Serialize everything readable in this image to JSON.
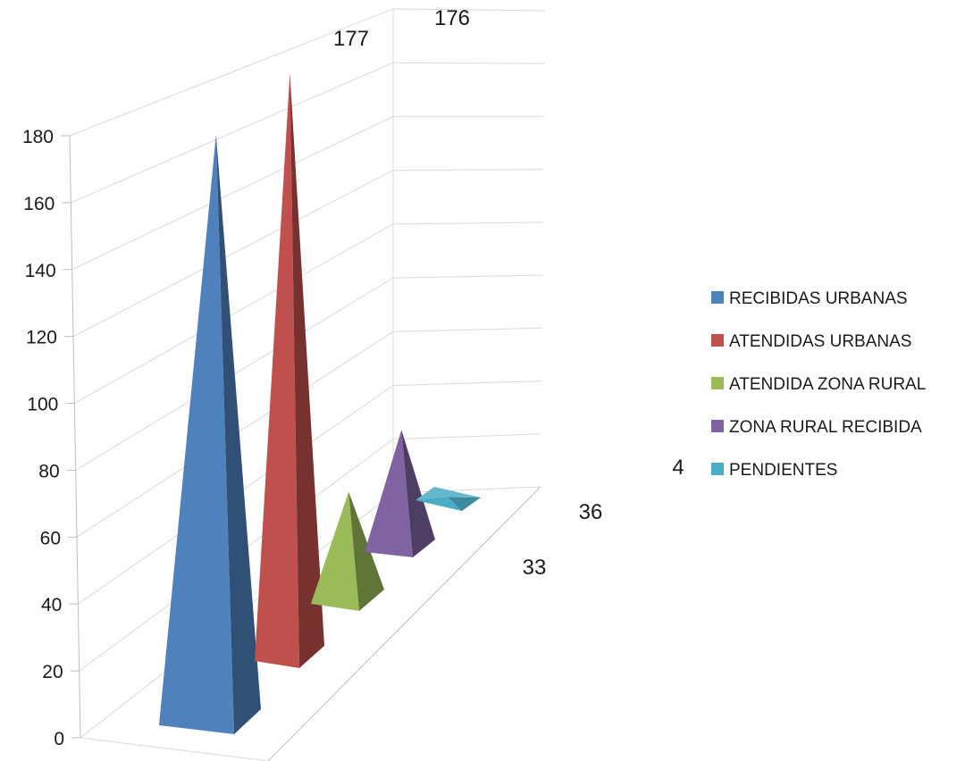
{
  "chart_data": {
    "type": "bar",
    "style": "3d-pyramid",
    "series": [
      {
        "name": "RECIBIDAS URBANAS",
        "value": 177,
        "color": "#4f81bd"
      },
      {
        "name": "ATENDIDAS URBANAS",
        "value": 176,
        "color": "#c0504d"
      },
      {
        "name": "ATENDIDA ZONA RURAL",
        "value": 33,
        "color": "#9bbb59"
      },
      {
        "name": "ZONA RURAL RECIBIDA",
        "value": 36,
        "color": "#8064a2"
      },
      {
        "name": "PENDIENTES",
        "value": 4,
        "color": "#4bacc6"
      }
    ],
    "y_ticks": [
      "0",
      "20",
      "40",
      "60",
      "80",
      "100",
      "120",
      "140",
      "160",
      "180"
    ],
    "ylim": [
      0,
      180
    ],
    "grid": true,
    "legend_position": "right"
  }
}
